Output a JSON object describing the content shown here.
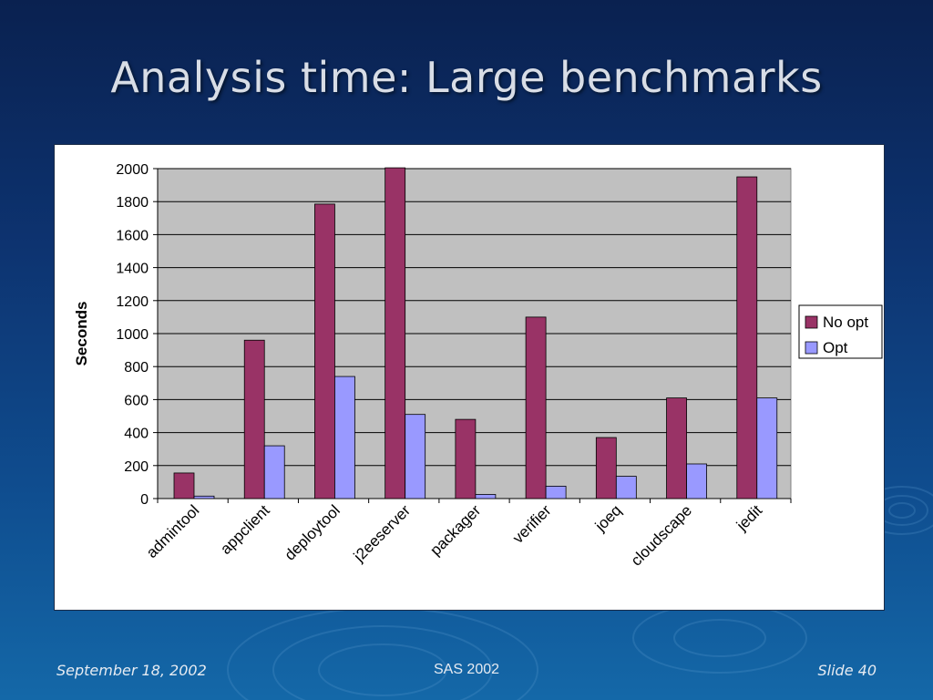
{
  "slide": {
    "title": "Analysis time: Large benchmarks",
    "footer_left": "September 18, 2002",
    "footer_center": "SAS 2002",
    "footer_right": "Slide 40"
  },
  "colors": {
    "no_opt": "#993366",
    "opt": "#9999ff",
    "plot_bg": "#c0c0c0"
  },
  "chart_data": {
    "type": "bar",
    "title": "",
    "xlabel": "",
    "ylabel": "Seconds",
    "ylim": [
      0,
      2000
    ],
    "yticks": [
      0,
      200,
      400,
      600,
      800,
      1000,
      1200,
      1400,
      1600,
      1800,
      2000
    ],
    "grid": true,
    "legend_position": "right",
    "categories": [
      "admintool",
      "appclient",
      "deploytool",
      "j2eeserver",
      "packager",
      "verifier",
      "joeq",
      "cloudscape",
      "jedit"
    ],
    "series": [
      {
        "name": "No opt",
        "values": [
          155,
          960,
          1785,
          2005,
          480,
          1100,
          370,
          610,
          1950
        ]
      },
      {
        "name": "Opt",
        "values": [
          15,
          320,
          740,
          510,
          25,
          75,
          135,
          210,
          610
        ]
      }
    ]
  }
}
